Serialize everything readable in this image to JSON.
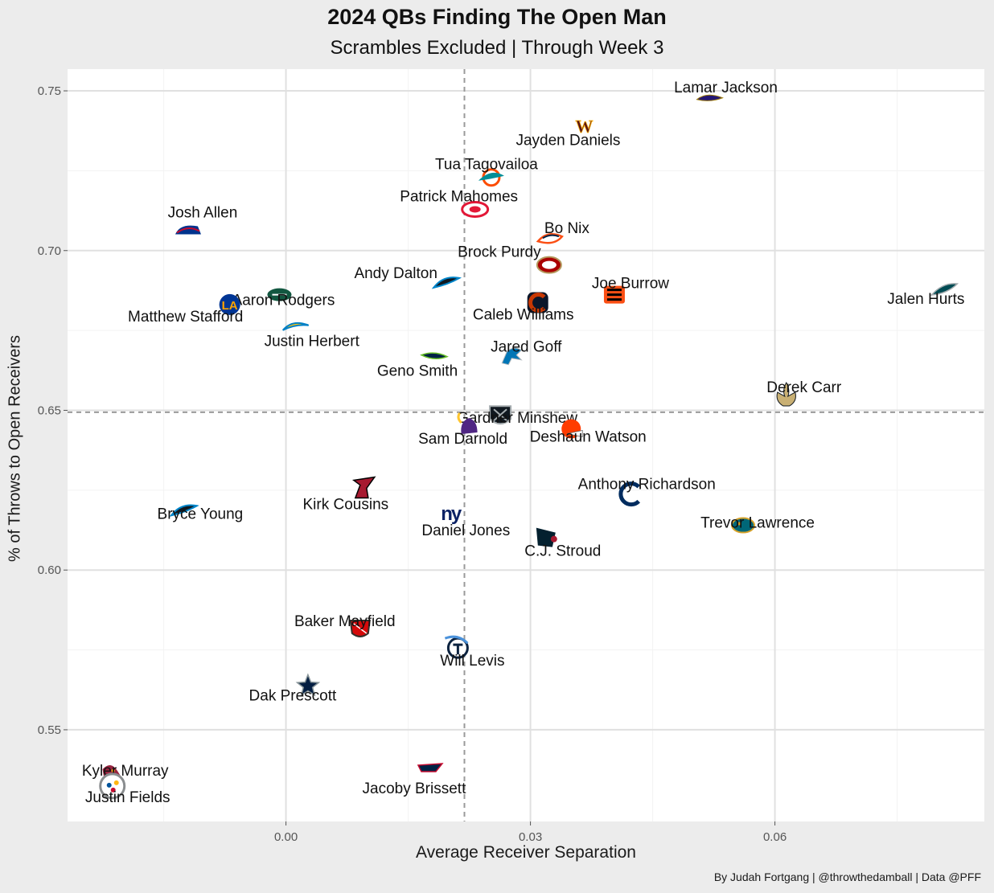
{
  "chart_data": {
    "type": "scatter",
    "title": "2024 QBs Finding The Open Man",
    "subtitle": "Scrambles Excluded | Through Week 3",
    "xlabel": "Average Receiver Separation",
    "ylabel": "% of Throws to Open Receivers",
    "caption": "By Judah Fortgang | @throwthedamball | Data @PFF",
    "xlim": [
      -0.0268,
      0.0857
    ],
    "ylim": [
      0.5213,
      0.7568
    ],
    "x_ticks": [
      0.0,
      0.03,
      0.06
    ],
    "x_tick_labels": [
      "0.00",
      "0.03",
      "0.06"
    ],
    "y_ticks": [
      0.55,
      0.6,
      0.65,
      0.7,
      0.75
    ],
    "y_tick_labels": [
      "0.55",
      "0.60",
      "0.65",
      "0.70",
      "0.75"
    ],
    "grid": true,
    "reference_lines": {
      "x": 0.0219,
      "y": 0.6494,
      "style": "dashed"
    },
    "colors": {
      "panel": "#ffffff",
      "background": "#ececec",
      "grid": "#e0e0e0",
      "reference": "#9a9a9a"
    },
    "points": [
      {
        "player": "Lamar Jackson",
        "team": "BAL",
        "x": 0.052,
        "y": 0.7478,
        "color": "#241773",
        "icon": "ravens-logo"
      },
      {
        "player": "Jayden Daniels",
        "team": "WAS",
        "x": 0.0366,
        "y": 0.7393,
        "color": "#5a1414",
        "accent": "#ffb612",
        "icon": "commanders-logo"
      },
      {
        "player": "Tua Tagovailoa",
        "team": "MIA",
        "x": 0.0252,
        "y": 0.7229,
        "color": "#008e97",
        "accent": "#fc4c02",
        "icon": "dolphins-logo"
      },
      {
        "player": "Patrick Mahomes",
        "team": "KC",
        "x": 0.0232,
        "y": 0.7129,
        "color": "#e31837",
        "icon": "chiefs-logo"
      },
      {
        "player": "Josh Allen",
        "team": "BUF",
        "x": -0.012,
        "y": 0.7061,
        "color": "#00338d",
        "accent": "#c60c30",
        "icon": "bills-logo"
      },
      {
        "player": "Bo Nix",
        "team": "DEN",
        "x": 0.0325,
        "y": 0.7034,
        "color": "#fb4f14",
        "accent": "#002244",
        "icon": "broncos-logo"
      },
      {
        "player": "Brock Purdy",
        "team": "SF",
        "x": 0.0323,
        "y": 0.6955,
        "color": "#aa0000",
        "accent": "#b3995d",
        "icon": "49ers-logo"
      },
      {
        "player": "Andy Dalton",
        "team": "CAR",
        "x": 0.0197,
        "y": 0.6899,
        "color": "#101820",
        "accent": "#0085ca",
        "icon": "panthers-logo"
      },
      {
        "player": "Aaron Rodgers",
        "team": "NYJ",
        "x": -0.0008,
        "y": 0.6862,
        "color": "#125740",
        "icon": "jets-logo"
      },
      {
        "player": "Joe Burrow",
        "team": "CIN",
        "x": 0.0403,
        "y": 0.6862,
        "color": "#fb4f14",
        "accent": "#000000",
        "icon": "bengals-logo"
      },
      {
        "player": "Jalen Hurts",
        "team": "PHI",
        "x": 0.0808,
        "y": 0.6876,
        "color": "#004c54",
        "accent": "#a5acaf",
        "icon": "eagles-logo"
      },
      {
        "player": "Caleb Williams",
        "team": "CHI",
        "x": 0.0309,
        "y": 0.6837,
        "color": "#c83803",
        "accent": "#0b162a",
        "icon": "bears-logo"
      },
      {
        "player": "Matthew Stafford",
        "team": "LAR",
        "x": -0.0069,
        "y": 0.6831,
        "color": "#003594",
        "accent": "#ffa300",
        "icon": "rams-logo"
      },
      {
        "player": "Justin Herbert",
        "team": "LAC",
        "x": 0.0012,
        "y": 0.6761,
        "color": "#0080c6",
        "accent": "#ffc20e",
        "icon": "chargers-logo"
      },
      {
        "player": "Geno Smith",
        "team": "SEA",
        "x": 0.0182,
        "y": 0.6668,
        "color": "#002244",
        "accent": "#69be28",
        "icon": "seahawks-logo"
      },
      {
        "player": "Jared Goff",
        "team": "DET",
        "x": 0.0277,
        "y": 0.6668,
        "color": "#0076b6",
        "icon": "lions-logo"
      },
      {
        "player": "Derek Carr",
        "team": "NO",
        "x": 0.0614,
        "y": 0.6549,
        "color": "#c9b074",
        "accent": "#101820",
        "icon": "saints-logo"
      },
      {
        "player": "Gardner Minshew",
        "team": "LV",
        "x": 0.0263,
        "y": 0.6483,
        "color": "#101820",
        "accent": "#a5acaf",
        "icon": "raiders-logo"
      },
      {
        "player": "Sam Darnold",
        "team": "MIN",
        "x": 0.0225,
        "y": 0.6451,
        "color": "#4f2683",
        "accent": "#ffc62f",
        "icon": "vikings-logo"
      },
      {
        "player": "Deshaun Watson",
        "team": "CLE",
        "x": 0.035,
        "y": 0.6442,
        "color": "#ff3c00",
        "accent": "#311d00",
        "icon": "browns-logo"
      },
      {
        "player": "Kirk Cousins",
        "team": "ATL",
        "x": 0.0095,
        "y": 0.6256,
        "color": "#a71930",
        "accent": "#000000",
        "icon": "falcons-logo"
      },
      {
        "player": "Anthony Richardson",
        "team": "IND",
        "x": 0.0424,
        "y": 0.6238,
        "color": "#002c5f",
        "icon": "colts-logo"
      },
      {
        "player": "Bryce Young",
        "team": "CAR",
        "x": -0.0125,
        "y": 0.6186,
        "color": "#101820",
        "accent": "#0085ca",
        "icon": "panthers-logo"
      },
      {
        "player": "Daniel Jones",
        "team": "NYG",
        "x": 0.0202,
        "y": 0.6177,
        "color": "#0b2265",
        "icon": "giants-logo"
      },
      {
        "player": "Trevor Lawrence",
        "team": "JAX",
        "x": 0.0561,
        "y": 0.614,
        "color": "#006778",
        "accent": "#d7a22a",
        "icon": "jaguars-logo"
      },
      {
        "player": "C.J. Stroud",
        "team": "HOU",
        "x": 0.0319,
        "y": 0.6102,
        "color": "#03202f",
        "accent": "#a71930",
        "icon": "texans-logo"
      },
      {
        "player": "Baker Mayfield",
        "team": "TB",
        "x": 0.0091,
        "y": 0.5817,
        "color": "#d50a0a",
        "accent": "#34302b",
        "icon": "buccaneers-logo"
      },
      {
        "player": "Will Levis",
        "team": "TEN",
        "x": 0.0211,
        "y": 0.5756,
        "color": "#0c2340",
        "accent": "#4b92db",
        "icon": "titans-logo"
      },
      {
        "player": "Dak Prescott",
        "team": "DAL",
        "x": 0.0027,
        "y": 0.5637,
        "color": "#041e42",
        "accent": "#869397",
        "icon": "cowboys-logo"
      },
      {
        "player": "Kyler Murray",
        "team": "ARI",
        "x": -0.0215,
        "y": 0.5357,
        "color": "#97233f",
        "icon": "cardinals-logo"
      },
      {
        "player": "Jacoby Brissett",
        "team": "NE",
        "x": 0.0178,
        "y": 0.5379,
        "color": "#002244",
        "accent": "#c60c30",
        "icon": "patriots-logo"
      },
      {
        "player": "Justin Fields",
        "team": "PIT",
        "x": -0.0213,
        "y": 0.5324,
        "color": "#8a8d8f",
        "accent": "#ffb612",
        "icon": "steelers-logo"
      }
    ]
  }
}
